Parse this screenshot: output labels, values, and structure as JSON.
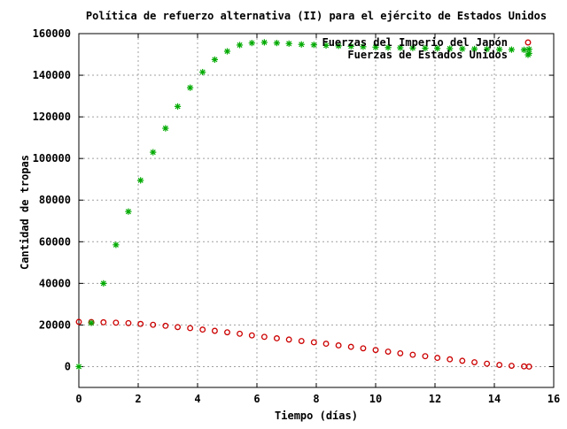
{
  "chart_data": {
    "type": "scatter",
    "title": "Política de refuerzo alternativa (II) para el ejército de Estados Unidos",
    "xlabel": "Tiempo (días)",
    "ylabel": "Cantidad de tropas",
    "xlim": [
      0,
      16
    ],
    "ylim": [
      -10000,
      160000
    ],
    "x_ticks": [
      0,
      2,
      4,
      6,
      8,
      10,
      12,
      14,
      16
    ],
    "y_ticks": [
      0,
      20000,
      40000,
      60000,
      80000,
      100000,
      120000,
      140000,
      160000
    ],
    "grid": true,
    "legend_position": "top-right",
    "series": [
      {
        "name": "Fuerzas del Imperio del Japón",
        "color": "#cc0000",
        "marker": "circle",
        "x": [
          0,
          0.42,
          0.83,
          1.25,
          1.67,
          2.08,
          2.5,
          2.92,
          3.33,
          3.75,
          4.17,
          4.58,
          5.0,
          5.42,
          5.83,
          6.25,
          6.67,
          7.08,
          7.5,
          7.92,
          8.33,
          8.75,
          9.17,
          9.58,
          10.0,
          10.42,
          10.83,
          11.25,
          11.67,
          12.08,
          12.5,
          12.92,
          13.33,
          13.75,
          14.17,
          14.58,
          15.0,
          15.17
        ],
        "y": [
          21500,
          21400,
          21300,
          21100,
          20900,
          20500,
          20100,
          19600,
          19000,
          18500,
          17800,
          17200,
          16500,
          15800,
          15000,
          14300,
          13600,
          13000,
          12300,
          11700,
          11000,
          10200,
          9500,
          8800,
          8000,
          7200,
          6400,
          5700,
          5000,
          4200,
          3500,
          2800,
          2100,
          1400,
          800,
          400,
          100,
          0
        ]
      },
      {
        "name": "Fuerzas de Estados Unidos",
        "color": "#00aa00",
        "marker": "star",
        "x": [
          0,
          0.42,
          0.83,
          1.25,
          1.67,
          2.08,
          2.5,
          2.92,
          3.33,
          3.75,
          4.17,
          4.58,
          5.0,
          5.42,
          5.83,
          6.25,
          6.67,
          7.08,
          7.5,
          7.92,
          8.33,
          8.75,
          9.17,
          9.58,
          10.0,
          10.42,
          10.83,
          11.25,
          11.67,
          12.08,
          12.5,
          12.92,
          13.33,
          13.75,
          14.17,
          14.58,
          15.0,
          15.17,
          15.17
        ],
        "y": [
          0,
          21000,
          40000,
          58500,
          74500,
          89500,
          103000,
          114500,
          125000,
          134000,
          141500,
          147500,
          151500,
          154500,
          155500,
          155800,
          155500,
          155200,
          154800,
          154600,
          154300,
          154100,
          153900,
          153700,
          153500,
          153300,
          153200,
          153100,
          153000,
          152900,
          152800,
          152700,
          152600,
          152500,
          152400,
          152300,
          152200,
          150500,
          152500
        ]
      }
    ]
  }
}
